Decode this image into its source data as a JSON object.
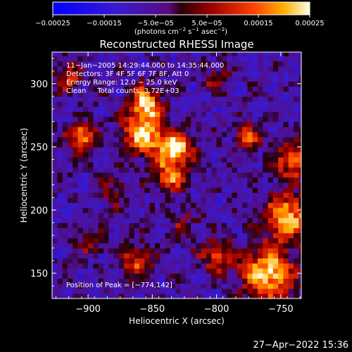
{
  "chart_data": {
    "type": "heatmap",
    "title": "Reconstructed RHESSI Image",
    "xlabel": "Heliocentric X (arcsec)",
    "ylabel": "Heliocentric Y (arcsec)",
    "xlim": [
      -928,
      -734
    ],
    "ylim": [
      130,
      325
    ],
    "x_ticks": [
      -900,
      -850,
      -800,
      -750
    ],
    "x_tick_labels": [
      "−900",
      "−850",
      "−800",
      "−750"
    ],
    "y_ticks": [
      150,
      200,
      250,
      300
    ],
    "y_tick_labels": [
      "150",
      "200",
      "250",
      "300"
    ],
    "colorbar": {
      "range": [
        -0.00025,
        0.00025
      ],
      "ticks": [
        -0.00025,
        -0.00015,
        -5e-05,
        5e-05,
        0.00015,
        0.00025
      ],
      "tick_labels": [
        "−0.00025",
        "−0.00015",
        "−5.0e−05",
        "5.0e−05",
        "0.00015",
        "0.00025"
      ],
      "unit_prefix": "(photons cm",
      "unit_sup1": "−2",
      "unit_mid": " s",
      "unit_sup2": "−1",
      "unit_mid2": " asec",
      "unit_sup3": "−2",
      "unit_suffix": ")"
    },
    "info_lines": [
      "11−Jan−2005 14:29:44.000 to 14:35:44.000",
      "Detectors: 3F 4F 5F 6F 7F 8F, Att 0",
      "Energy Range: 12.0 − 25.0 keV",
      "Clean     Total counts: 3.72E+03"
    ],
    "peak_label": "Position of Peak = [−774,142]",
    "peak": [
      -774,
      142
    ],
    "sources": [
      {
        "x": -857,
        "y": 260,
        "amp": 1.0,
        "s": 11
      },
      {
        "x": -855,
        "y": 285,
        "amp": 0.9,
        "s": 9
      },
      {
        "x": -832,
        "y": 250,
        "amp": 1.0,
        "s": 9
      },
      {
        "x": -836,
        "y": 228,
        "amp": 0.75,
        "s": 9
      },
      {
        "x": -905,
        "y": 258,
        "amp": 0.85,
        "s": 8
      },
      {
        "x": -777,
        "y": 258,
        "amp": 0.7,
        "s": 7
      },
      {
        "x": -760,
        "y": 150,
        "amp": 1.0,
        "s": 15
      },
      {
        "x": -745,
        "y": 195,
        "amp": 0.95,
        "s": 12
      },
      {
        "x": -740,
        "y": 240,
        "amp": 0.75,
        "s": 10
      },
      {
        "x": -862,
        "y": 160,
        "amp": 0.65,
        "s": 8
      },
      {
        "x": -800,
        "y": 165,
        "amp": 0.6,
        "s": 9
      },
      {
        "x": -915,
        "y": 305,
        "amp": 0.55,
        "s": 8
      },
      {
        "x": -800,
        "y": 305,
        "amp": 0.4,
        "s": 7
      },
      {
        "x": -880,
        "y": 215,
        "amp": 0.35,
        "s": 8
      },
      {
        "x": -825,
        "y": 190,
        "amp": 0.3,
        "s": 8
      },
      {
        "x": -900,
        "y": 175,
        "amp": 0.35,
        "s": 8
      }
    ]
  },
  "timestamp": "27−Apr−2022 15:36"
}
